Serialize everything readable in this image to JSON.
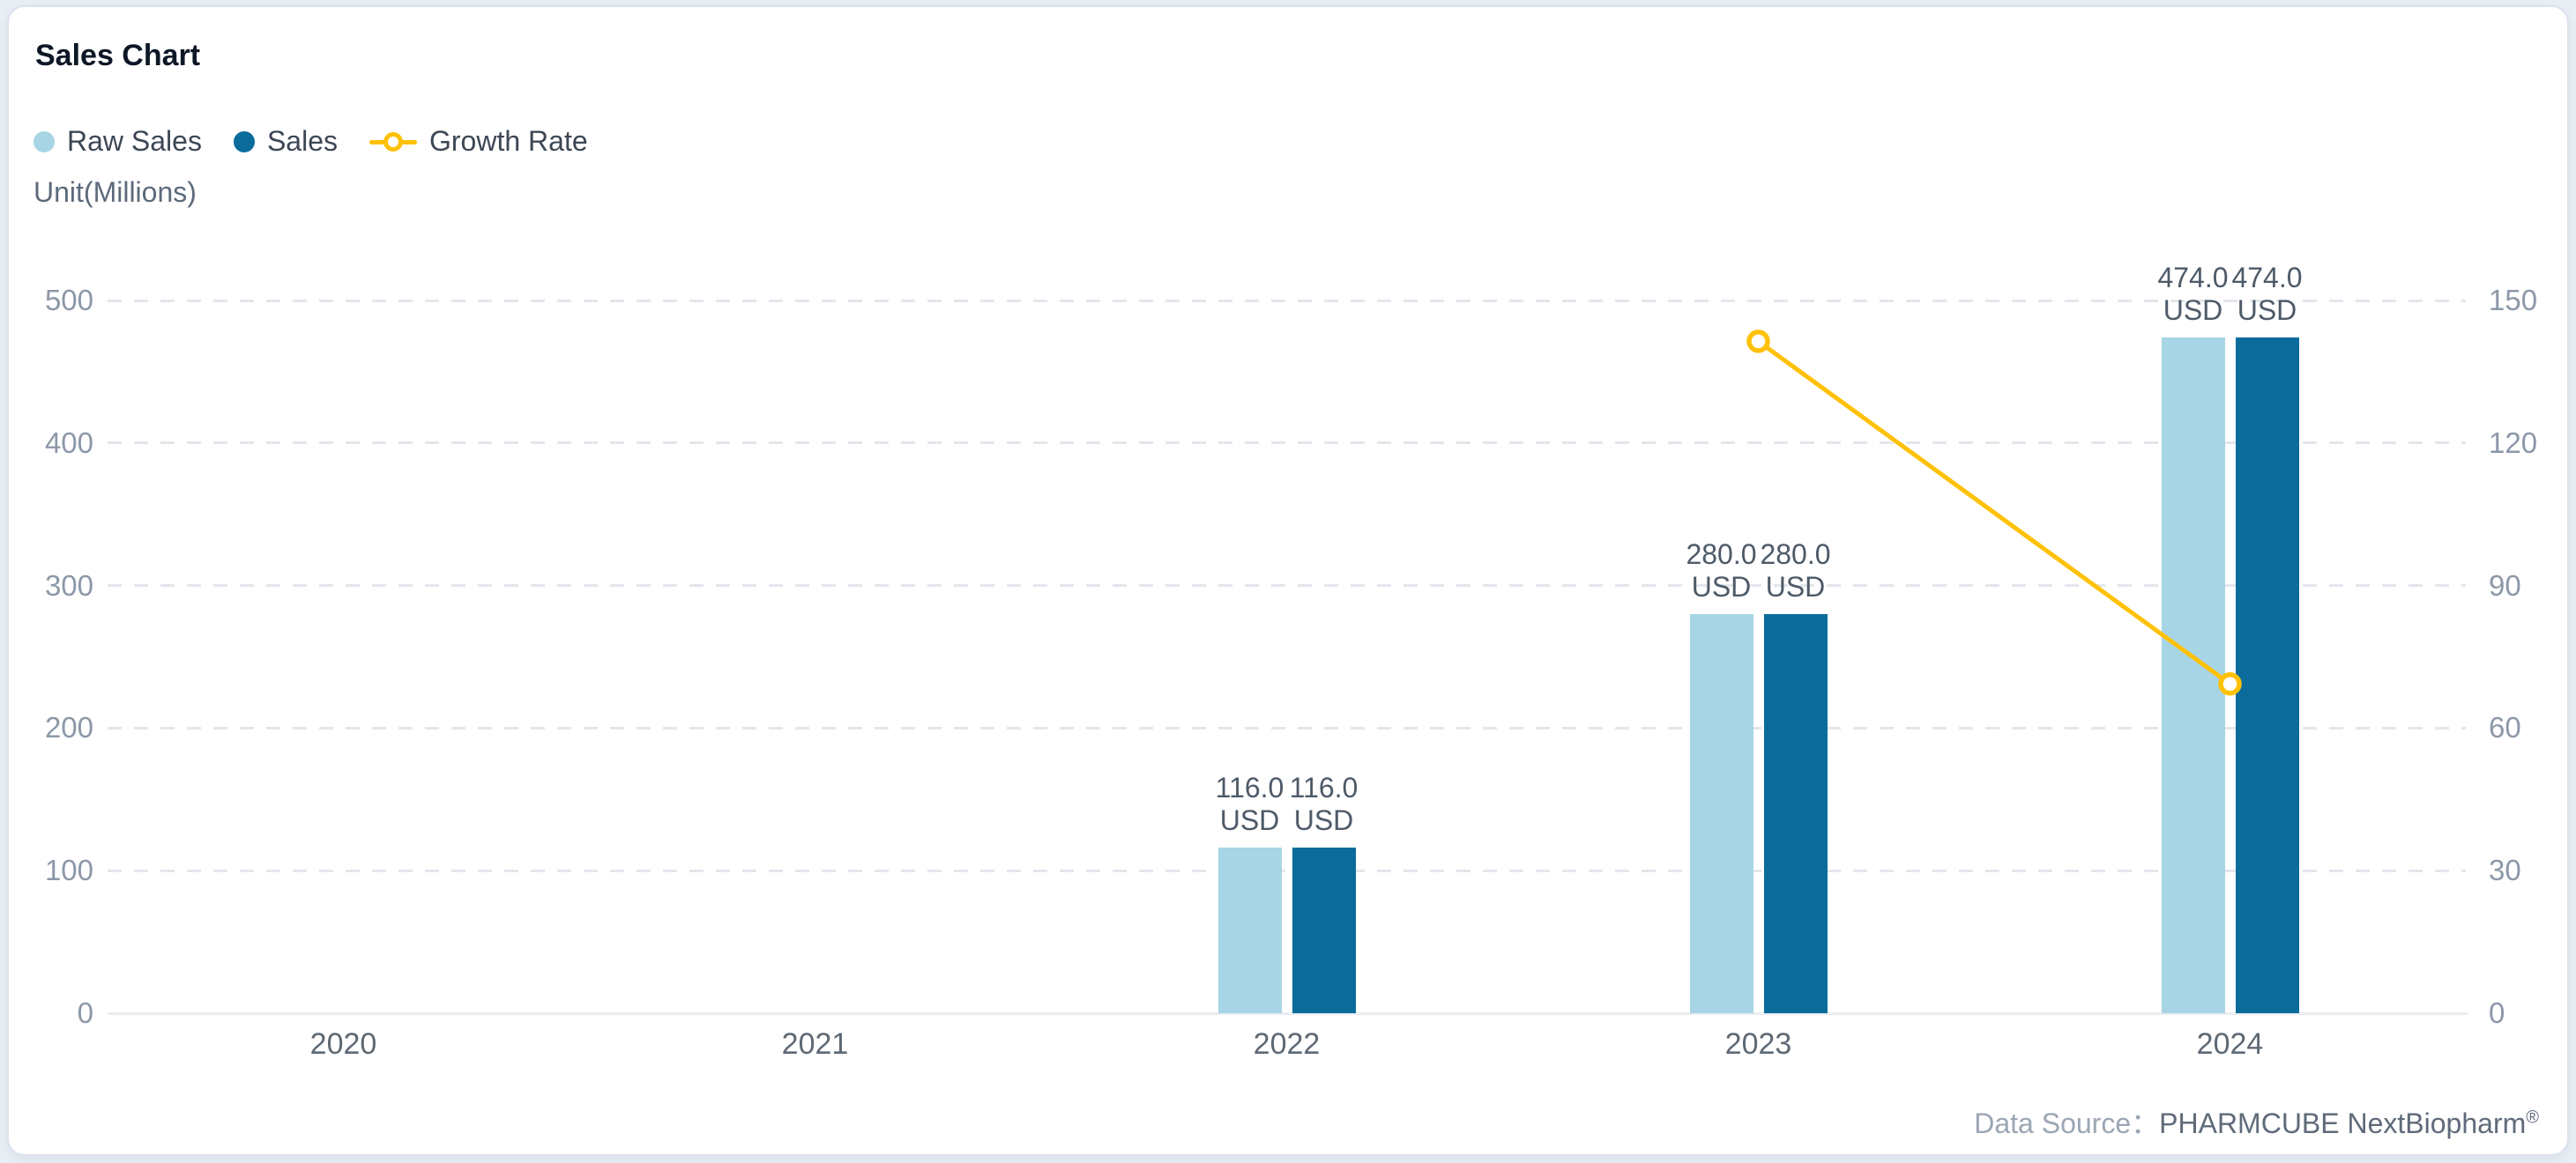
{
  "card": {
    "title": "Sales Chart",
    "unit_label": "Unit(Millions)",
    "data_source": {
      "label": "Data Source：",
      "value": "PHARMCUBE NextBiopharm",
      "mark": "®"
    }
  },
  "legend": [
    {
      "id": "raw-sales",
      "label": "Raw Sales",
      "icon": "circle",
      "color": "#A7D5E6"
    },
    {
      "id": "sales",
      "label": "Sales",
      "icon": "circle",
      "color": "#0B6C9B"
    },
    {
      "id": "growth-rate",
      "label": "Growth Rate",
      "icon": "line-ring",
      "color": "#FFC107"
    }
  ],
  "chart_data": {
    "type": "bar",
    "subtype": "grouped bars with overlay line, dual y-axis",
    "title": "Sales Chart",
    "categories": [
      "2020",
      "2021",
      "2022",
      "2023",
      "2024"
    ],
    "series": [
      {
        "name": "Raw Sales",
        "type": "bar",
        "axis": "left",
        "color": "#A7D5E6",
        "values": [
          null,
          null,
          116.0,
          280.0,
          474.0
        ],
        "value_labels": [
          null,
          null,
          "116.0",
          "280.0",
          "474.0"
        ],
        "unit_label": "USD"
      },
      {
        "name": "Sales",
        "type": "bar",
        "axis": "left",
        "color": "#0B6C9B",
        "values": [
          null,
          null,
          116.0,
          280.0,
          474.0
        ],
        "value_labels": [
          null,
          null,
          "116.0",
          "280.0",
          "474.0"
        ],
        "unit_label": "USD"
      },
      {
        "name": "Growth Rate",
        "type": "line",
        "axis": "right",
        "color": "#FFC107",
        "values": [
          null,
          null,
          null,
          141.4,
          69.3
        ]
      }
    ],
    "left_axis": {
      "title": "Unit(Millions)",
      "min": 0,
      "max": 500,
      "ticks_top_to_bottom": [
        "500",
        "400",
        "300",
        "200",
        "100",
        "0"
      ]
    },
    "right_axis": {
      "min": 0,
      "max": 150,
      "ticks_top_to_bottom": [
        "150",
        "120",
        "90",
        "60",
        "30",
        "0"
      ]
    },
    "grid": {
      "horizontal_gridlines": true,
      "style": "dashed"
    },
    "legend_position": "top-left",
    "legend_entries": [
      "Raw Sales",
      "Sales",
      "Growth Rate"
    ]
  },
  "colors": {
    "page_bg": "#E9EEF5",
    "card_bg": "#FFFFFF",
    "card_border": "#DCE3EE",
    "title": "#0D1726",
    "legend_text": "#3C4754",
    "unit_text": "#5C6A7B",
    "y_tick": "#8C98A8",
    "x_tick": "#5D6974",
    "bar_label": "#4D5A68",
    "grid_line": "#E3E7EC",
    "axis_line": "#EAEDF1",
    "source_label": "#9BA6B4",
    "source_value": "#5F6B7A"
  }
}
